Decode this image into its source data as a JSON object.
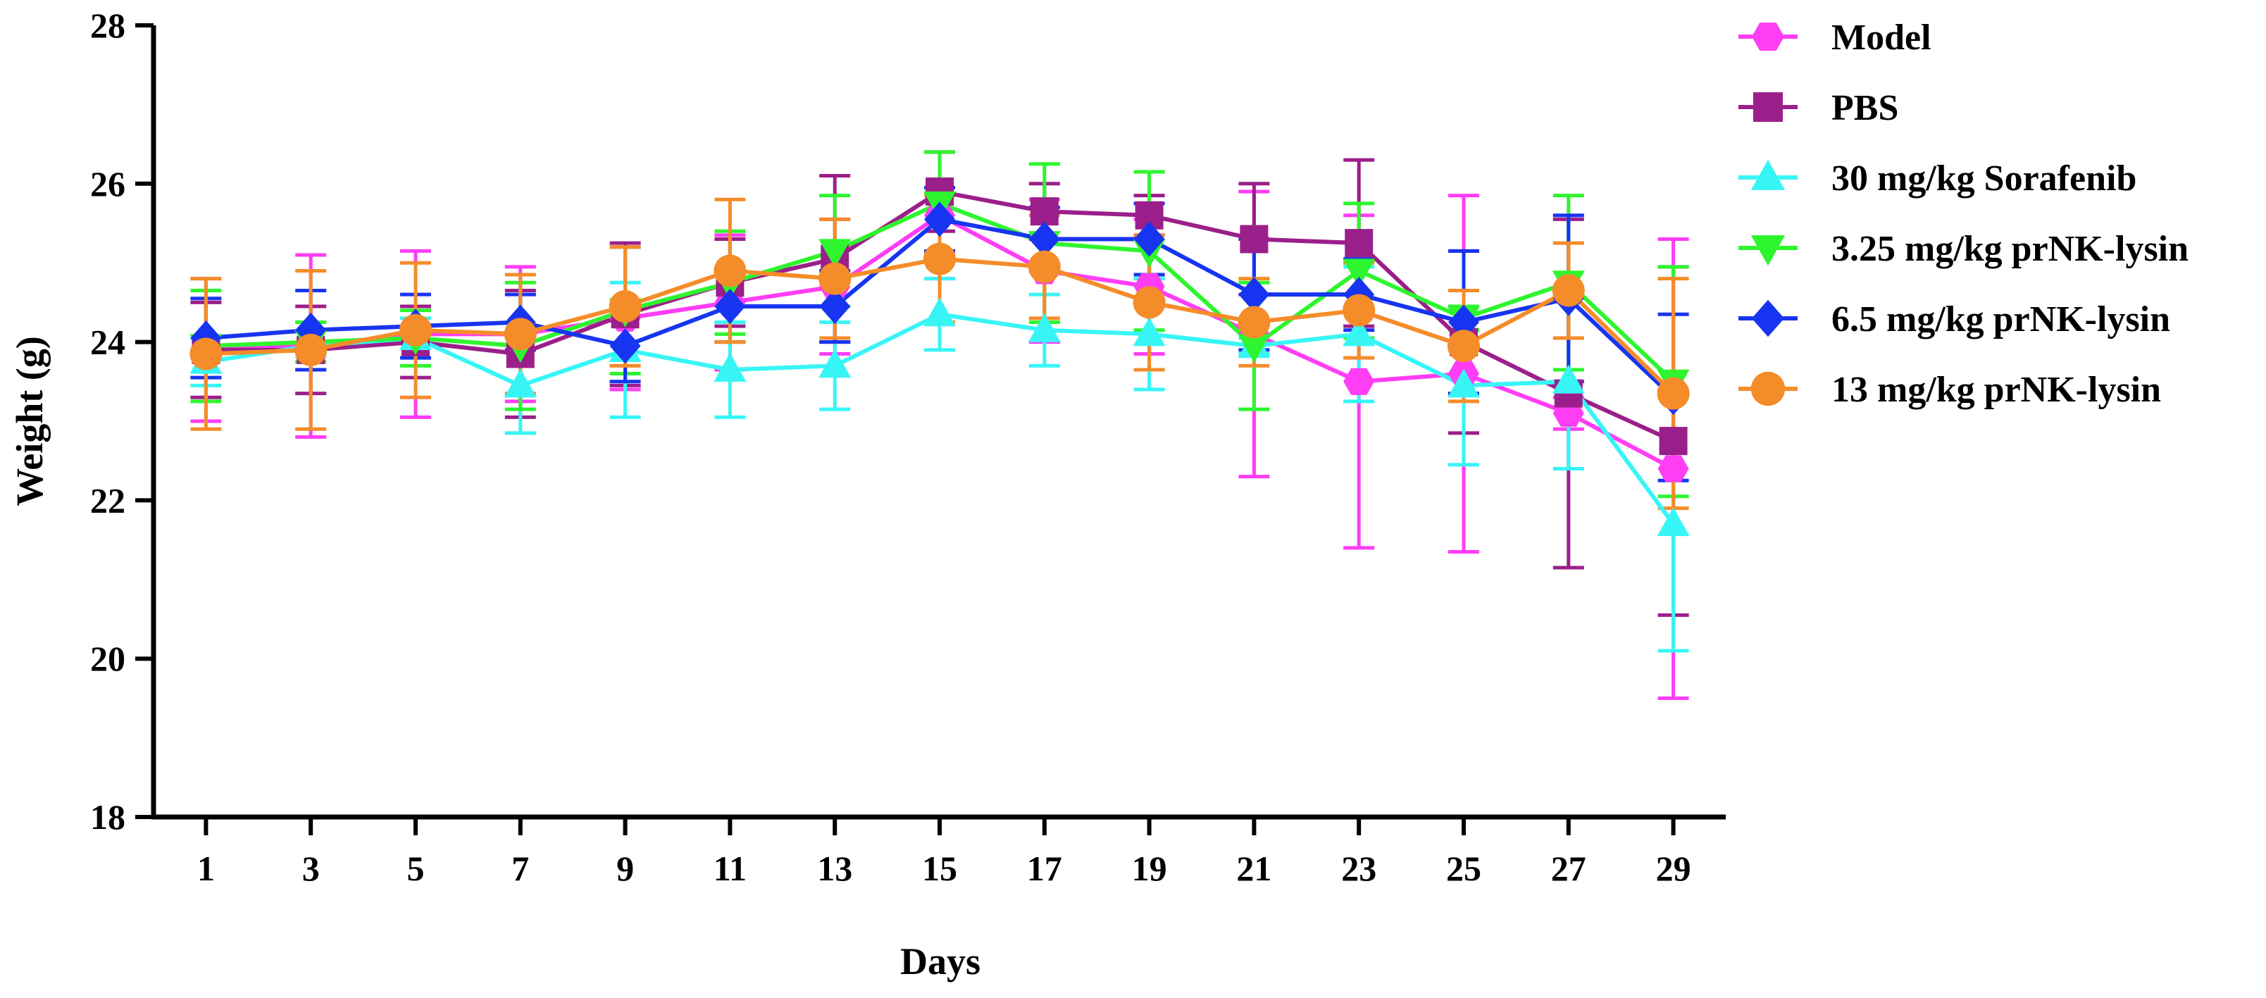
{
  "chart_data": {
    "type": "line",
    "title": "",
    "xlabel": "Days",
    "ylabel": "Weight (g)",
    "x": [
      1,
      3,
      5,
      7,
      9,
      11,
      13,
      15,
      17,
      19,
      21,
      23,
      25,
      27,
      29
    ],
    "x_ticks": [
      "1",
      "3",
      "5",
      "7",
      "9",
      "11",
      "13",
      "15",
      "17",
      "19",
      "21",
      "23",
      "25",
      "27",
      "29"
    ],
    "xlim": [
      0,
      30
    ],
    "ylim": [
      18,
      28
    ],
    "y_ticks": [
      "18",
      "20",
      "22",
      "24",
      "26",
      "28"
    ],
    "grid": false,
    "legend_position": "right",
    "error_bars": true,
    "series": [
      {
        "name": "Model",
        "color": "#ff3df5",
        "marker": "hexagon",
        "values": [
          23.9,
          23.95,
          24.1,
          24.1,
          24.3,
          24.5,
          24.7,
          25.6,
          24.9,
          24.7,
          24.1,
          23.5,
          23.6,
          23.1,
          22.4
        ],
        "errors": [
          0.9,
          1.15,
          1.05,
          0.85,
          0.9,
          0.85,
          0.85,
          0.8,
          0.9,
          0.85,
          1.8,
          2.1,
          2.25,
          0.2,
          2.9
        ]
      },
      {
        "name": "PBS",
        "color": "#9b1f8a",
        "marker": "square",
        "values": [
          23.9,
          23.9,
          24.0,
          23.85,
          24.35,
          24.75,
          25.05,
          25.9,
          25.65,
          25.6,
          25.3,
          25.25,
          24.0,
          23.35,
          22.75
        ],
        "errors": [
          0.6,
          0.55,
          0.45,
          0.8,
          0.9,
          0.55,
          1.05,
          0.5,
          0.35,
          0.25,
          0.7,
          1.05,
          1.15,
          2.2,
          2.2
        ]
      },
      {
        "name": "30 mg/kg Sorafenib",
        "color": "#38f5f5",
        "marker": "triangle-up",
        "values": [
          23.75,
          23.95,
          24.05,
          23.45,
          23.9,
          23.65,
          23.7,
          24.35,
          24.15,
          24.1,
          23.95,
          24.1,
          23.45,
          23.5,
          21.7
        ],
        "errors": [
          0.3,
          0.3,
          0.25,
          0.6,
          0.85,
          0.6,
          0.55,
          0.45,
          0.45,
          0.7,
          0.1,
          0.85,
          1.0,
          1.1,
          1.6
        ]
      },
      {
        "name": "3.25 mg/kg prNK-lysin",
        "color": "#2ef52e",
        "marker": "triangle-down",
        "values": [
          23.95,
          24.0,
          24.05,
          23.95,
          24.4,
          24.75,
          25.15,
          25.75,
          25.25,
          25.15,
          23.95,
          24.9,
          24.3,
          24.75,
          23.5
        ],
        "errors": [
          0.7,
          0.25,
          0.35,
          0.8,
          0.8,
          0.65,
          0.7,
          0.65,
          1.0,
          1.0,
          0.8,
          0.85,
          0.15,
          1.1,
          1.45
        ]
      },
      {
        "name": "6.5 mg/kg prNK-lysin",
        "color": "#1735f0",
        "marker": "diamond",
        "values": [
          24.05,
          24.15,
          24.2,
          24.25,
          23.95,
          24.45,
          24.45,
          25.55,
          25.3,
          25.3,
          24.6,
          24.6,
          24.25,
          24.55,
          23.3
        ],
        "errors": [
          0.5,
          0.5,
          0.4,
          0.35,
          0.45,
          0.45,
          0.45,
          0.4,
          0.4,
          0.45,
          0.7,
          0.45,
          0.9,
          1.05,
          1.05
        ]
      },
      {
        "name": "13 mg/kg prNK-lysin",
        "color": "#f58c2a",
        "marker": "circle",
        "values": [
          23.85,
          23.9,
          24.15,
          24.1,
          24.45,
          24.9,
          24.8,
          25.05,
          24.95,
          24.5,
          24.25,
          24.4,
          23.95,
          24.65,
          23.35
        ],
        "errors": [
          0.95,
          1.0,
          0.85,
          0.75,
          0.75,
          0.9,
          0.75,
          0.8,
          0.65,
          0.85,
          0.55,
          0.6,
          0.7,
          0.6,
          1.45
        ]
      }
    ]
  }
}
